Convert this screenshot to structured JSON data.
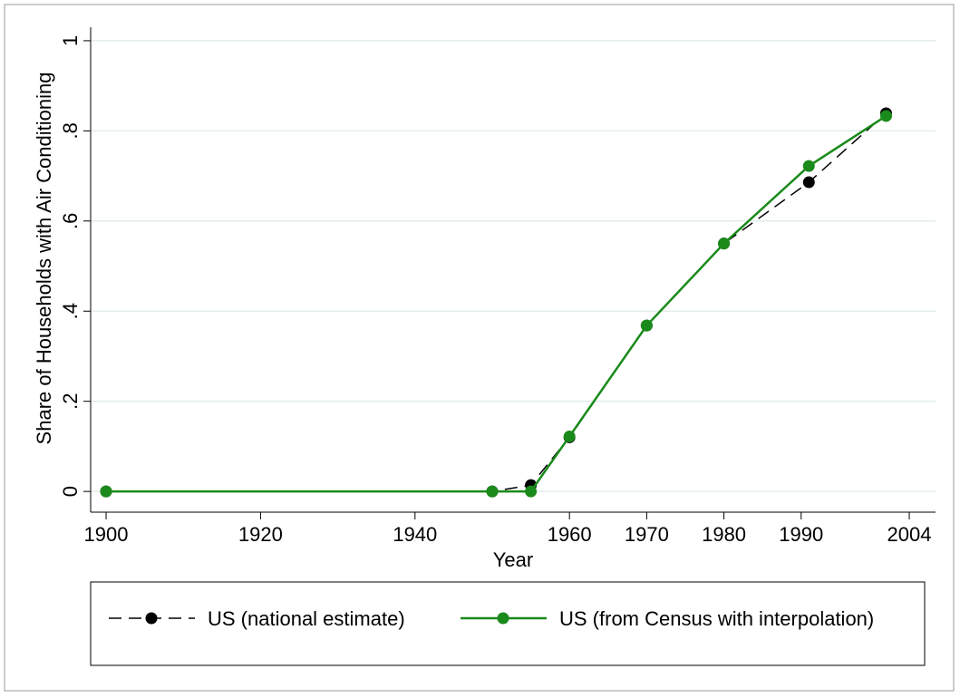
{
  "chart_data": {
    "type": "line",
    "x_label": "Year",
    "y_label": "Share of Households with Air Conditioning",
    "series": [
      {
        "name": "US (national estimate)",
        "color": "#000000",
        "dash": true,
        "x": [
          1900,
          1950,
          1955,
          1960,
          1970,
          1980,
          1991,
          2001
        ],
        "values": [
          0,
          0,
          0.014,
          0.12,
          0.368,
          0.55,
          0.686,
          0.839
        ]
      },
      {
        "name": "US (from Census with interpolation)",
        "color": "#1a8a1a",
        "dash": false,
        "x": [
          1900,
          1950,
          1955,
          1960,
          1970,
          1980,
          1991,
          2001
        ],
        "values": [
          0,
          0,
          0,
          0.122,
          0.368,
          0.55,
          0.722,
          0.833
        ]
      }
    ],
    "xlim": [
      1898,
      2007.4
    ],
    "xticks": [
      1900,
      1920,
      1940,
      1960,
      1970,
      1980,
      1990,
      2004
    ],
    "ylim": [
      -0.046,
      1.03
    ],
    "yticks": [
      0,
      {
        "value": 0.2,
        "label": ".2"
      },
      {
        "value": 0.4,
        "label": ".4"
      },
      {
        "value": 0.6,
        "label": ".6"
      },
      {
        "value": 0.8,
        "label": ".8"
      },
      1
    ],
    "grid": true,
    "legend": "bottom"
  }
}
